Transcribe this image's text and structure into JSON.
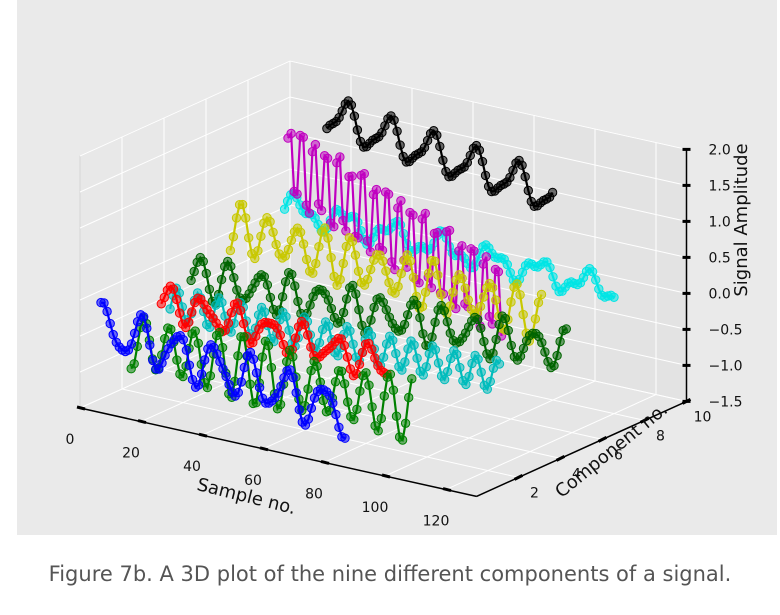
{
  "caption": "Figure 7b. A 3D plot of the nine different components of a signal.",
  "chart_data": {
    "type": "line",
    "subtype": "3d-line-with-markers",
    "title": "",
    "xlabel": "Sample no.",
    "ylabel": "Component no.",
    "zlabel": "Signal Amplitude",
    "xlim": [
      0,
      130
    ],
    "ylim": [
      0,
      10
    ],
    "zlim": [
      -1.5,
      2.0
    ],
    "x_ticks": [
      0,
      20,
      40,
      60,
      80,
      100,
      120
    ],
    "y_ticks": [
      2,
      4,
      6,
      8,
      10
    ],
    "z_ticks": [
      -1.5,
      -1.0,
      -0.5,
      0.0,
      0.5,
      1.0,
      1.5,
      2.0
    ],
    "z_tick_labels": [
      "−1.5",
      "−1.0",
      "−0.5",
      "0.0",
      "0.5",
      "1.0",
      "1.5",
      "2.0"
    ],
    "grid": true,
    "background": "#eaeaea",
    "series": [
      {
        "component": 9,
        "color": "#000000",
        "x_start": 19,
        "x_end": 93,
        "offset": 1.55,
        "amplitude": 0.25,
        "period": 14,
        "trend": -0.4
      },
      {
        "component": 8,
        "color": "#00e5e5",
        "x_start": 12,
        "x_end": 120,
        "offset": 0.35,
        "amplitude": 0.15,
        "period": 16,
        "trend": -0.15
      },
      {
        "component": 7,
        "color": "#c000c0",
        "x_start": 20,
        "x_end": 90,
        "offset": 1.2,
        "amplitude": 0.6,
        "period": 4,
        "trend": -1.3
      },
      {
        "component": 6,
        "color": "#c8c800",
        "x_start": 8,
        "x_end": 110,
        "offset": 0.3,
        "amplitude": 0.3,
        "period": 9,
        "trend": -0.3
      },
      {
        "component": 5,
        "color": "#006400",
        "x_start": 2,
        "x_end": 125,
        "offset": -0.3,
        "amplitude": 0.25,
        "period": 10,
        "trend": 0.1
      },
      {
        "component": 4,
        "color": "#00bcbc",
        "x_start": 2,
        "x_end": 110,
        "offset": -0.55,
        "amplitude": 0.3,
        "period": 7,
        "trend": 0.0
      },
      {
        "component": 3,
        "color": "#ff0000",
        "x_start": 6,
        "x_end": 80,
        "offset": -0.35,
        "amplitude": 0.2,
        "period": 11,
        "trend": -0.2
      },
      {
        "component": 2,
        "color": "#008000",
        "x_start": 3,
        "x_end": 95,
        "offset": -0.8,
        "amplitude": 0.4,
        "period": 8,
        "trend": -0.1
      },
      {
        "component": 1,
        "color": "#0000ff",
        "x_start": 0,
        "x_end": 80,
        "offset": -0.5,
        "amplitude": 0.3,
        "period": 12,
        "trend": -0.45
      }
    ]
  }
}
